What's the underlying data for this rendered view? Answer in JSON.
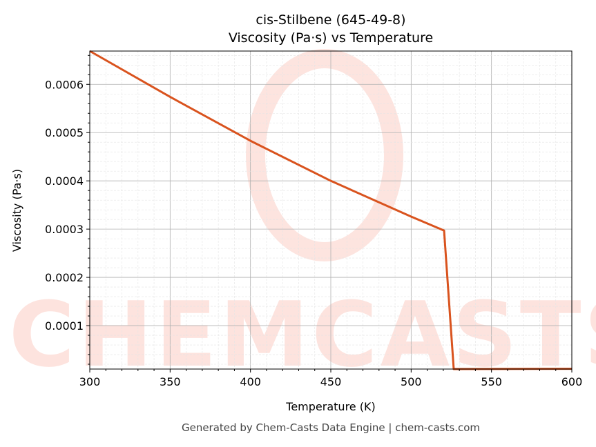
{
  "chart_data": {
    "type": "line",
    "title": "cis-Stilbene (645-49-8)",
    "subtitle": "Viscosity (Pa·s) vs Temperature",
    "xlabel": "Temperature (K)",
    "ylabel": "Viscosity (Pa·s)",
    "xlim": [
      300,
      600
    ],
    "ylim": [
      1e-05,
      0.000669
    ],
    "xticks": [
      "300",
      "350",
      "400",
      "450",
      "500",
      "550",
      "600"
    ],
    "yticks": [
      "0.0001",
      "0.0002",
      "0.0003",
      "0.0004",
      "0.0005",
      "0.0006"
    ],
    "grid": true,
    "series": [
      {
        "color": "#d9531e",
        "x": [
          300,
          350,
          400,
          450,
          500,
          520.5,
          526.5,
          600
        ],
        "y": [
          0.000669,
          0.000574,
          0.000483,
          0.0004,
          0.000326,
          0.000297,
          1e-05,
          1.05e-05
        ]
      }
    ]
  },
  "watermark": "CHEMCASTS",
  "footer": "Generated by Chem-Casts Data Engine | chem-casts.com"
}
